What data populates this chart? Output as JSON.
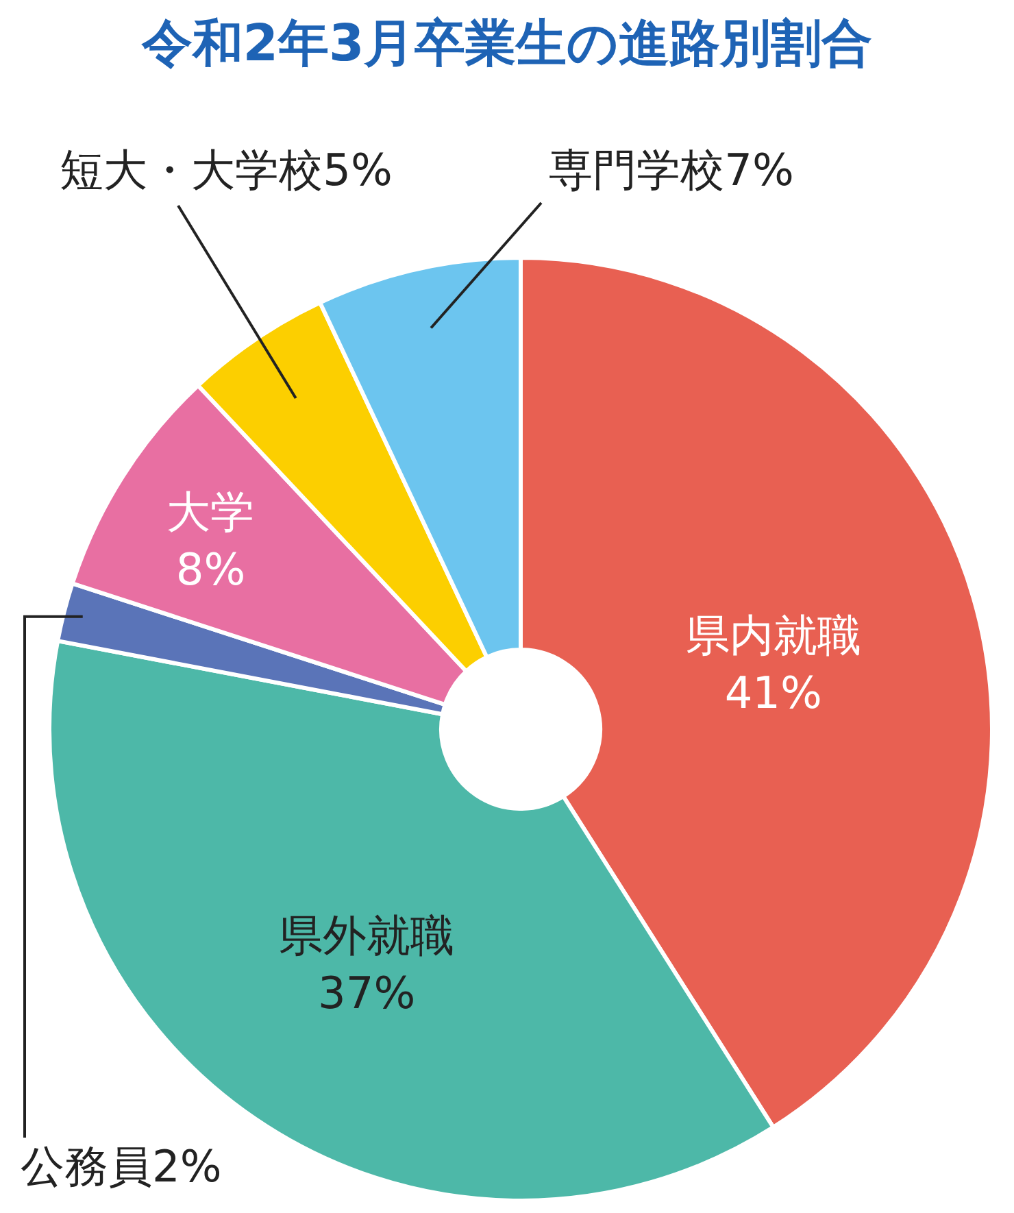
{
  "chart_data": {
    "type": "donut",
    "title": "令和2年3月卒業生の進路別割合",
    "categories": [
      "県内就職",
      "県外就職",
      "公務員",
      "大学",
      "短大・大学校",
      "専門学校"
    ],
    "values": [
      41,
      37,
      2,
      8,
      5,
      7
    ],
    "value_labels": [
      "41%",
      "37%",
      "2%",
      "8%",
      "5%",
      "7%"
    ],
    "colors": [
      "#e86052",
      "#4db8a8",
      "#5a74b8",
      "#e86fa2",
      "#fccf00",
      "#6cc5ef"
    ]
  }
}
